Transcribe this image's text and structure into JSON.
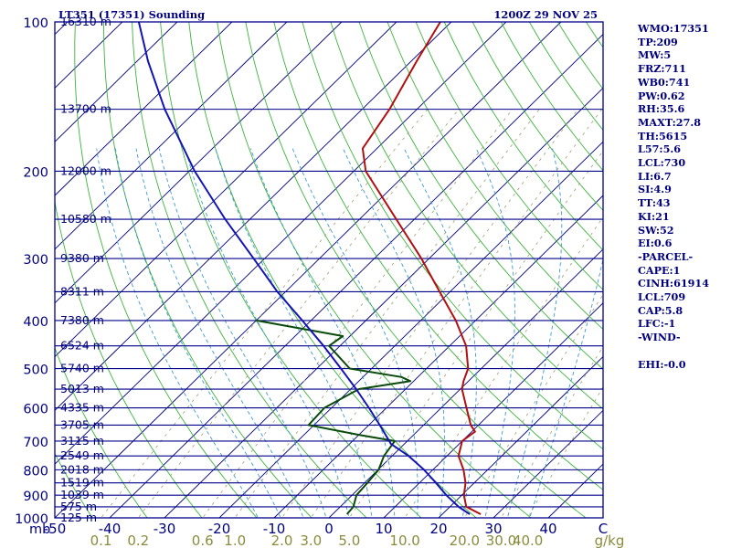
{
  "colors": {
    "isobar": "#00008b",
    "isotherm": "#00007f",
    "dry_adiabat": "#3cb43c",
    "moist_adiabat": "#3c9ad0",
    "mixing_ratio": "#a09c70",
    "mixing_ratio_label": "#8b8b3c",
    "temperature": "#b01010",
    "dewpoint": "#0a4a0a",
    "parcel": "#1414b4",
    "text": "#00007f",
    "background": "#ffffff"
  },
  "chart_data": {
    "type": "line",
    "title": "LT351 (17351) Sounding",
    "subtitle": "1200Z 29 NOV 25",
    "xlabel": "C",
    "ylabel": "mb",
    "mixing_ratio_unit": "g/kg",
    "pressure_range_mb": [
      1000,
      100
    ],
    "temperature_range_c": [
      -50,
      50
    ],
    "skew": "right",
    "pressure_ticks": [
      "100",
      "200",
      "300",
      "400",
      "500",
      "600",
      "700",
      "800",
      "900",
      "1000"
    ],
    "temperature_ticks": [
      "-50",
      "-40",
      "-30",
      "-20",
      "-10",
      "0",
      "10",
      "20",
      "30",
      "40",
      "C"
    ],
    "mixing_ratio_ticks": [
      "0.1",
      "0.2",
      "0.6",
      "1.0",
      "2.0",
      "3.0",
      "5.0",
      "10.0",
      "20.0",
      "30.0",
      "40.0",
      "g/kg"
    ],
    "height_labels": [
      {
        "p": 100,
        "text": "16310 m"
      },
      {
        "p": 150,
        "text": "13700 m"
      },
      {
        "p": 200,
        "text": "12000 m"
      },
      {
        "p": 250,
        "text": "10580 m"
      },
      {
        "p": 300,
        "text": "9380 m"
      },
      {
        "p": 350,
        "text": "8311 m"
      },
      {
        "p": 400,
        "text": "7380 m"
      },
      {
        "p": 450,
        "text": "6524 m"
      },
      {
        "p": 500,
        "text": "5740 m"
      },
      {
        "p": 550,
        "text": "5013 m"
      },
      {
        "p": 600,
        "text": "4335 m"
      },
      {
        "p": 650,
        "text": "3705 m"
      },
      {
        "p": 700,
        "text": "3115 m"
      },
      {
        "p": 750,
        "text": "2549 m"
      },
      {
        "p": 800,
        "text": "2018 m"
      },
      {
        "p": 850,
        "text": "1519 m"
      },
      {
        "p": 900,
        "text": "1039 m"
      },
      {
        "p": 950,
        "text": "575 m"
      },
      {
        "p": 1000,
        "text": "125 m"
      }
    ],
    "series": [
      {
        "name": "Temperature",
        "points": [
          [
            983,
            27.0
          ],
          [
            950,
            23.0
          ],
          [
            900,
            20.4
          ],
          [
            850,
            18.4
          ],
          [
            800,
            15.6
          ],
          [
            750,
            12.1
          ],
          [
            700,
            10.0
          ],
          [
            670,
            10.6
          ],
          [
            650,
            8.6
          ],
          [
            600,
            4.6
          ],
          [
            550,
            0.3
          ],
          [
            530,
            -0.9
          ],
          [
            500,
            -2.4
          ],
          [
            450,
            -7.0
          ],
          [
            400,
            -13.6
          ],
          [
            350,
            -21.9
          ],
          [
            300,
            -31.4
          ],
          [
            250,
            -43.3
          ],
          [
            200,
            -57.8
          ],
          [
            180,
            -62.6
          ],
          [
            150,
            -65.0
          ],
          [
            120,
            -69.0
          ],
          [
            100,
            -72.0
          ]
        ]
      },
      {
        "name": "Dewpoint",
        "points": [
          [
            983,
            2.6
          ],
          [
            950,
            2.4
          ],
          [
            900,
            0.8
          ],
          [
            850,
            0.5
          ],
          [
            800,
            0.1
          ],
          [
            750,
            -1.5
          ],
          [
            700,
            -2.3
          ],
          [
            680,
            -10.0
          ],
          [
            650,
            -21.0
          ],
          [
            600,
            -21.3
          ],
          [
            550,
            -18.5
          ],
          [
            530,
            -10.6
          ],
          [
            520,
            -13.0
          ],
          [
            500,
            -24.0
          ],
          [
            450,
            -32.0
          ],
          [
            430,
            -31.3
          ],
          [
            400,
            -50.0
          ]
        ]
      },
      {
        "name": "Parcel",
        "points": [
          [
            983,
            25.0
          ],
          [
            950,
            21.6
          ],
          [
            900,
            17.2
          ],
          [
            850,
            13.0
          ],
          [
            800,
            8.4
          ],
          [
            750,
            3.0
          ],
          [
            709,
            -2.5
          ],
          [
            700,
            -3.3
          ],
          [
            650,
            -8.0
          ],
          [
            600,
            -13.2
          ],
          [
            550,
            -19.0
          ],
          [
            500,
            -25.6
          ],
          [
            450,
            -33.0
          ],
          [
            400,
            -41.6
          ],
          [
            350,
            -51.5
          ],
          [
            300,
            -62.0
          ],
          [
            250,
            -74.5
          ],
          [
            200,
            -89.0
          ],
          [
            150,
            -106.0
          ],
          [
            120,
            -118.0
          ],
          [
            100,
            -127.0
          ]
        ]
      }
    ]
  },
  "indices": [
    "WMO:17351",
    "TP:209",
    "MW:5",
    "FRZ:711",
    "WB0:741",
    "PW:0.62",
    "RH:35.6",
    "MAXT:27.8",
    "TH:5615",
    "L57:5.6",
    "LCL:730",
    "LI:6.7",
    "SI:4.9",
    "TT:43",
    "KI:21",
    "SW:52",
    "EI:0.6"
  ],
  "parcel_heading": "-PARCEL-",
  "parcel_indices": [
    "CAPE:1",
    "CINH:61914",
    "LCL:709",
    "CAP:5.8",
    "LFC:-1"
  ],
  "wind_heading": "-WIND-",
  "wind_indices": [
    "EHI:-0.0"
  ]
}
